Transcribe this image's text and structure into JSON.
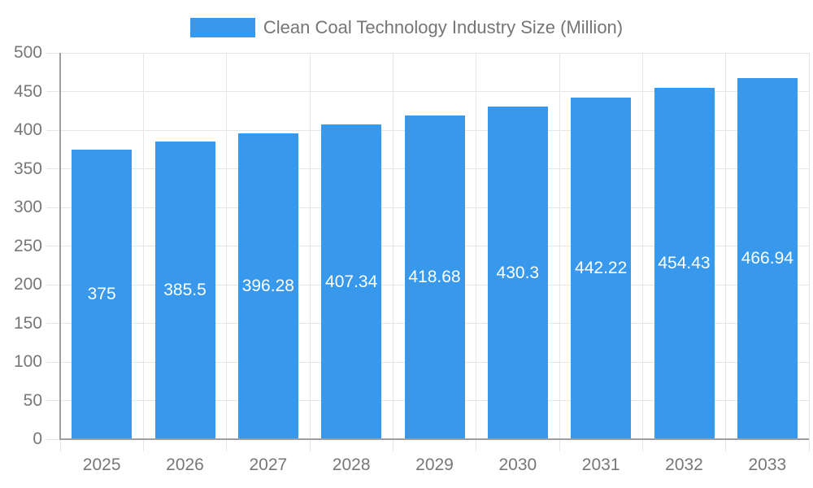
{
  "legend": {
    "label": "Clean Coal Technology Industry Size (Million)"
  },
  "chart_data": {
    "type": "bar",
    "title": "Clean Coal Technology Industry Size (Million)",
    "categories": [
      "2025",
      "2026",
      "2027",
      "2028",
      "2029",
      "2030",
      "2031",
      "2032",
      "2033"
    ],
    "values": [
      375,
      385.5,
      396.28,
      407.34,
      418.68,
      430.3,
      442.22,
      454.43,
      466.94
    ],
    "value_labels": [
      "375",
      "385.5",
      "396.28",
      "407.34",
      "418.68",
      "430.3",
      "442.22",
      "454.43",
      "466.94"
    ],
    "xlabel": "",
    "ylabel": "",
    "ylim": [
      0,
      500
    ],
    "ytick_step": 50,
    "ytick_labels": [
      "0",
      "50",
      "100",
      "150",
      "200",
      "250",
      "300",
      "350",
      "400",
      "450",
      "500"
    ],
    "grid": true,
    "legend_position": "top-center",
    "colors": {
      "bar": "#3899ec",
      "grid": "#e6e6e6",
      "axis": "#9e9e9e",
      "tick_text": "#777777",
      "bar_label_text": "#ffffff",
      "legend_text": "#757575"
    }
  }
}
